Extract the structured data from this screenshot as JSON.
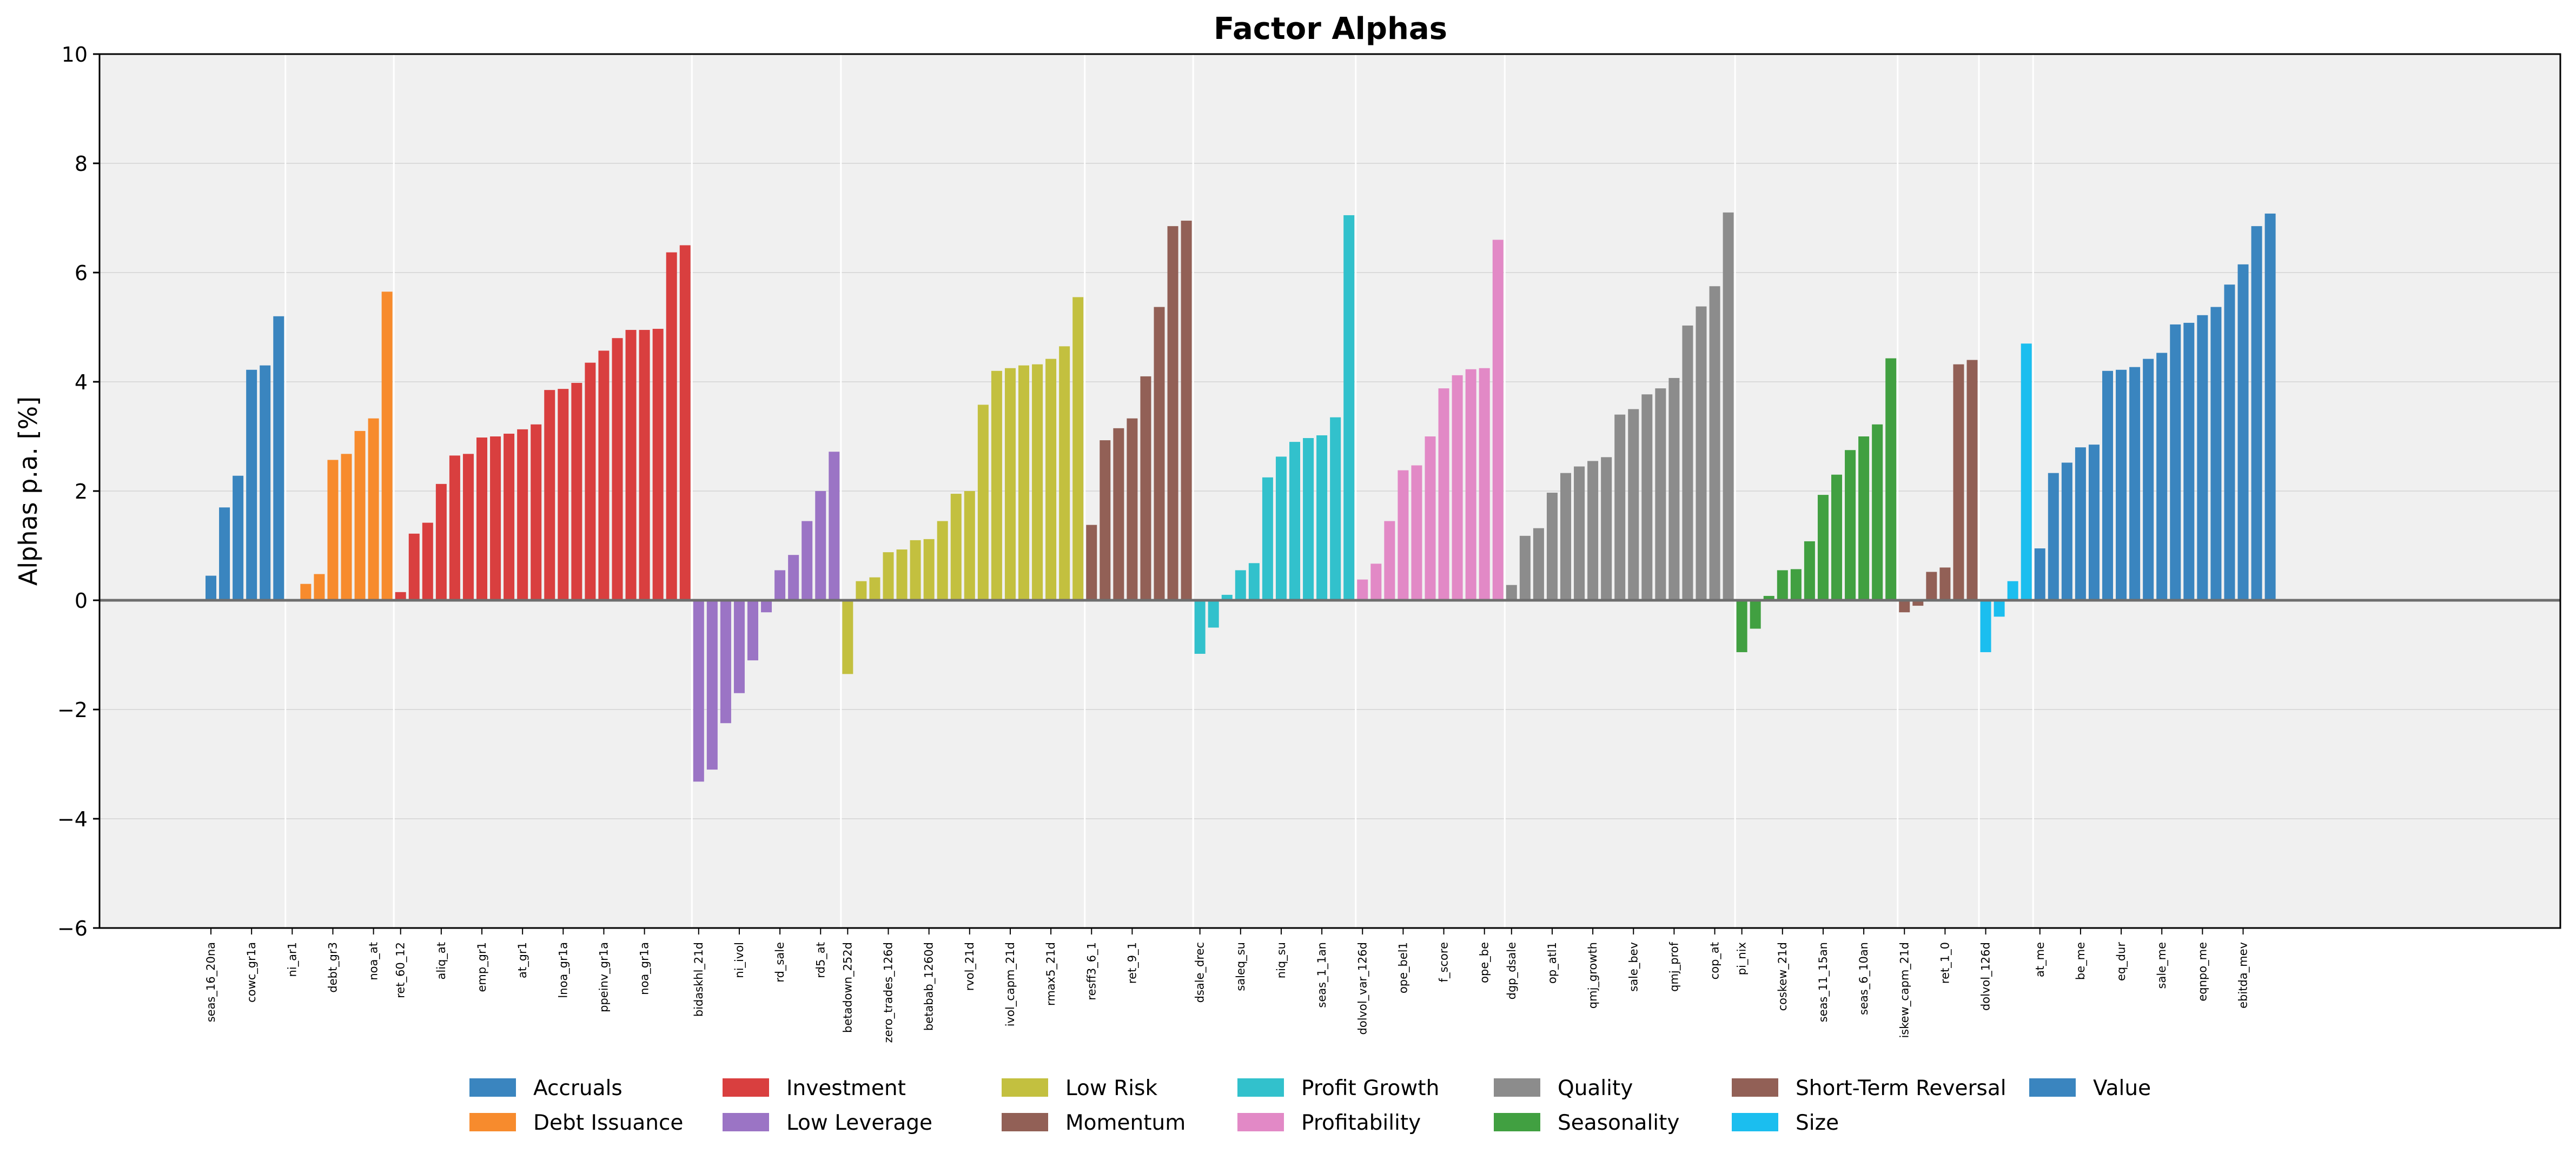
{
  "chart_data": {
    "type": "bar",
    "title": "Factor Alphas",
    "xlabel": "",
    "ylabel": "Alphas p.a. [%]",
    "ylim": [
      -6,
      10
    ],
    "yticks": [
      -6,
      -4,
      -2,
      0,
      2,
      4,
      6,
      8,
      10
    ],
    "ytick_labels": [
      "−6",
      "−4",
      "−2",
      "0",
      "2",
      "4",
      "6",
      "8",
      "10"
    ],
    "grid": "horizontal",
    "legend_position": "bottom-center",
    "groups": [
      {
        "name": "Accruals",
        "color": "#3a85bf",
        "values": [
          0.45,
          1.7,
          2.28,
          4.22,
          4.3,
          5.2
        ],
        "tick_labels": [
          "seas_16_20na",
          "cowc_gr1a"
        ]
      },
      {
        "name": "Debt Issuance",
        "color": "#f78b2d",
        "values": [
          0.0,
          0.3,
          0.48,
          2.57,
          2.68,
          3.1,
          3.33,
          5.65
        ],
        "tick_labels": [
          "ni_ar1",
          "debt_gr3",
          "noa_at"
        ]
      },
      {
        "name": "Investment",
        "color": "#d93f3f",
        "values": [
          0.15,
          1.22,
          1.42,
          2.13,
          2.65,
          2.68,
          2.98,
          3.0,
          3.05,
          3.13,
          3.22,
          3.85,
          3.87,
          3.98,
          4.35,
          4.57,
          4.8,
          4.95,
          4.95,
          4.97,
          6.37,
          6.5
        ],
        "tick_labels": [
          "ret_60_12",
          "aliq_at",
          "emp_gr1",
          "at_gr1",
          "lnoa_gr1a",
          "ppeinv_gr1a",
          "noa_gr1a"
        ]
      },
      {
        "name": "Low Leverage",
        "color": "#9b74c5",
        "values": [
          -3.32,
          -3.1,
          -2.25,
          -1.7,
          -1.1,
          -0.22,
          0.55,
          0.83,
          1.45,
          2.0,
          2.72
        ],
        "tick_labels": [
          "bidaskhl_21d",
          "ni_ivol",
          "rd_sale",
          "rd5_at"
        ]
      },
      {
        "name": "Low Risk",
        "color": "#c3c03f",
        "values": [
          -1.35,
          0.35,
          0.42,
          0.88,
          0.93,
          1.1,
          1.12,
          1.45,
          1.95,
          2.0,
          3.58,
          4.2,
          4.25,
          4.3,
          4.32,
          4.42,
          4.65,
          5.55
        ],
        "tick_labels": [
          "betadown_252d",
          "zero_trades_126d",
          "betabab_1260d",
          "rvol_21d",
          "ivol_capm_21d",
          "rmax5_21d"
        ]
      },
      {
        "name": "Momentum",
        "color": "#926056",
        "values": [
          1.38,
          2.93,
          3.15,
          3.33,
          4.1,
          5.37,
          6.85,
          6.95
        ],
        "tick_labels": [
          "resff3_6_1",
          "ret_9_1"
        ]
      },
      {
        "name": "Profit Growth",
        "color": "#32c1cc",
        "values": [
          -0.98,
          -0.5,
          0.1,
          0.55,
          0.68,
          2.25,
          2.63,
          2.9,
          2.97,
          3.02,
          3.35,
          7.05
        ],
        "tick_labels": [
          "dsale_drec",
          "saleq_su",
          "niq_su",
          "seas_1_1an"
        ]
      },
      {
        "name": "Profitability",
        "color": "#e289c6",
        "values": [
          0.38,
          0.67,
          1.45,
          2.38,
          2.47,
          3.0,
          3.88,
          4.12,
          4.23,
          4.25,
          6.6
        ],
        "tick_labels": [
          "dolvol_var_126d",
          "ope_bel1",
          "f_score",
          "ope_be"
        ]
      },
      {
        "name": "Quality",
        "color": "#8c8c8c",
        "values": [
          0.28,
          1.18,
          1.32,
          1.97,
          2.33,
          2.45,
          2.55,
          2.62,
          3.4,
          3.5,
          3.77,
          3.88,
          4.07,
          5.03,
          5.38,
          5.75,
          7.1
        ],
        "tick_labels": [
          "dgp_dsale",
          "op_atl1",
          "qmj_growth",
          "sale_bev",
          "qmj_prof",
          "cop_at"
        ]
      },
      {
        "name": "Seasonality",
        "color": "#41a041",
        "values": [
          -0.95,
          -0.52,
          0.08,
          0.55,
          0.57,
          1.08,
          1.93,
          2.3,
          2.75,
          3.0,
          3.22,
          4.43
        ],
        "tick_labels": [
          "pi_nix",
          "coskew_21d",
          "seas_11_15an",
          "seas_6_10an"
        ]
      },
      {
        "name": "Short-Term Reversal",
        "color": "#926056",
        "values": [
          -0.22,
          -0.1,
          0.52,
          0.6,
          4.32,
          4.4
        ],
        "tick_labels": [
          "iskew_capm_21d",
          "ret_1_0"
        ]
      },
      {
        "name": "Size",
        "color": "#1bbeef",
        "values": [
          -0.95,
          -0.3,
          0.35,
          4.7
        ],
        "tick_labels": [
          "dolvol_126d"
        ]
      },
      {
        "name": "Value",
        "color": "#3a85bf",
        "values": [
          0.95,
          2.33,
          2.52,
          2.8,
          2.85,
          4.2,
          4.22,
          4.27,
          4.42,
          4.53,
          5.05,
          5.08,
          5.22,
          5.37,
          5.78,
          6.15,
          6.85,
          7.08
        ],
        "tick_labels": [
          "at_me",
          "be_me",
          "eq_dur",
          "sale_me",
          "eqnpo_me",
          "ebitda_mev"
        ]
      }
    ]
  }
}
